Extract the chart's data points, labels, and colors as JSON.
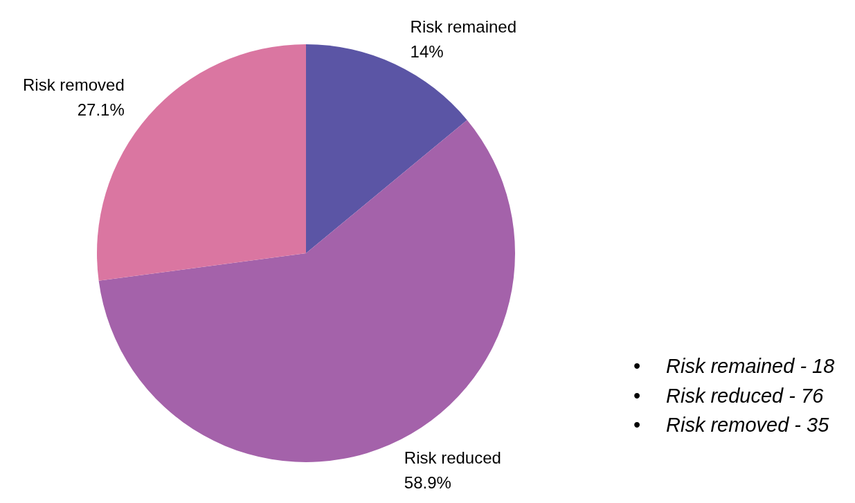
{
  "chart_data": {
    "type": "pie",
    "categories": [
      "Risk remained",
      "Risk reduced",
      "Risk removed"
    ],
    "values": [
      14,
      58.9,
      27.1
    ],
    "value_labels": [
      "14%",
      "58.9%",
      "27.1%"
    ],
    "colors": [
      "#5b55a5",
      "#a462aa",
      "#da76a1"
    ],
    "annotations": [
      "• Risk remained - 18",
      "• Risk reduced - 76",
      "• Risk removed - 35"
    ]
  }
}
